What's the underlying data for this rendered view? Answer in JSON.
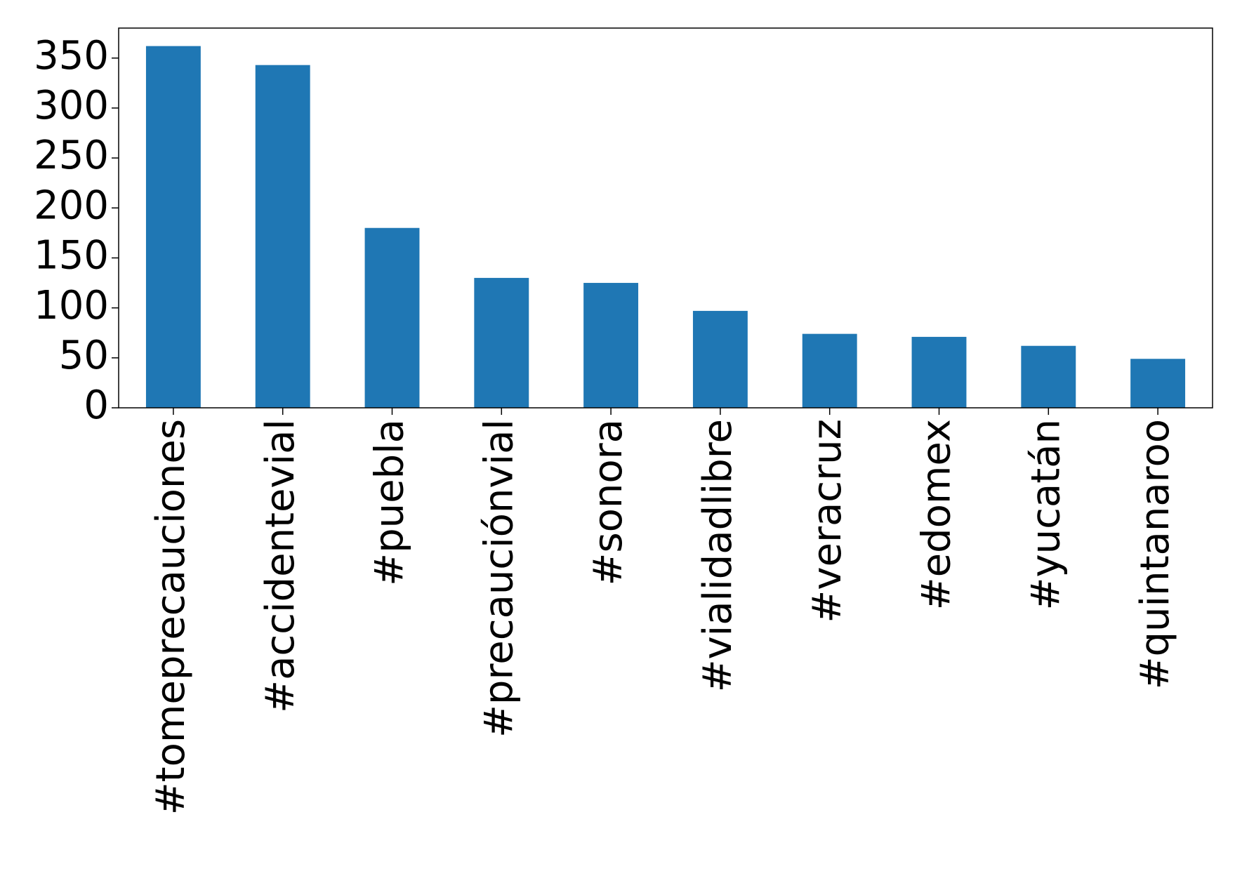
{
  "chart_data": {
    "type": "bar",
    "categories": [
      "#tomeprecauciones",
      "#accidentevial",
      "#puebla",
      "#precauciónvial",
      "#sonora",
      "#vialidadlibre",
      "#veracruz",
      "#edomex",
      "#yucatán",
      "#quintanaroo"
    ],
    "values": [
      362,
      343,
      180,
      130,
      125,
      97,
      74,
      71,
      62,
      49
    ],
    "color": "#1f77b4",
    "ylim": [
      0,
      380
    ],
    "yticks": [
      0,
      50,
      100,
      150,
      200,
      250,
      300,
      350
    ],
    "grid": false
  }
}
